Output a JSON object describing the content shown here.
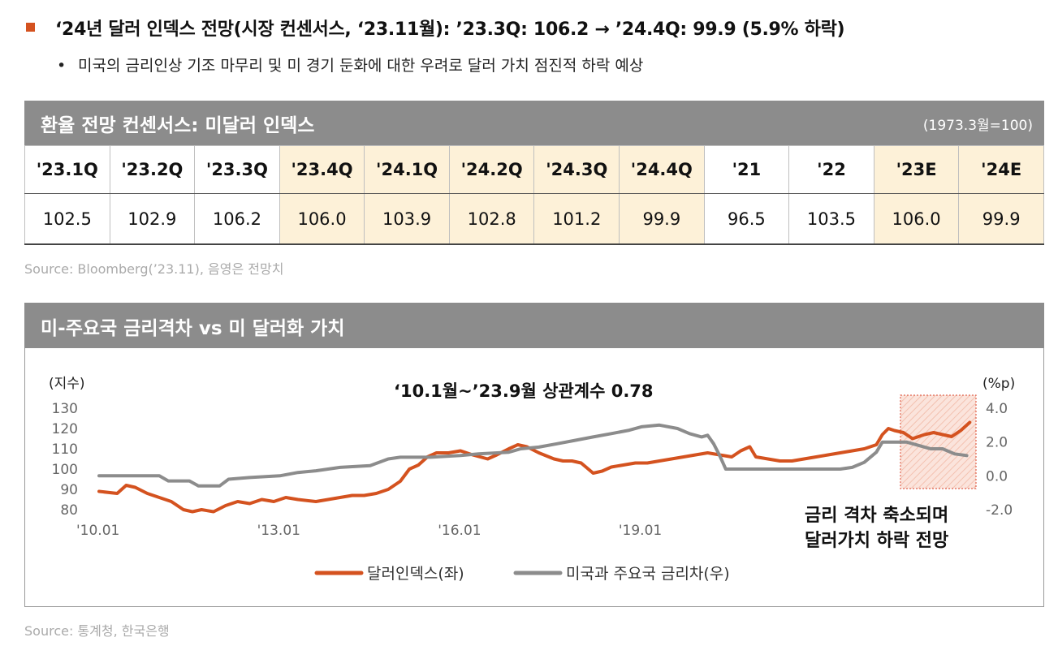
{
  "headline": {
    "text": "‘24년 달러 인덱스 전망(시장 컨센서스, ‘23.11월): ’23.3Q: 106.2 → ’24.4Q: 99.9 (5.9% 하락)",
    "bullet_color": "#d4521f"
  },
  "subpoint": "미국의 금리인상 기조 마무리 및 미 경기 둔화에 대한 우려로 달러 가치 점진적 하락 예상",
  "table": {
    "title": "환율 전망 컨센서스: 미달러 인덱스",
    "note": "(1973.3월=100)",
    "columns": [
      "'23.1Q",
      "'23.2Q",
      "'23.3Q",
      "'23.4Q",
      "'24.1Q",
      "'24.2Q",
      "'24.3Q",
      "'24.4Q",
      "'21",
      "'22",
      "'23E",
      "'24E"
    ],
    "values": [
      "102.5",
      "102.9",
      "106.2",
      "106.0",
      "103.9",
      "102.8",
      "101.2",
      "99.9",
      "96.5",
      "103.5",
      "106.0",
      "99.9"
    ],
    "forecast_flags": [
      false,
      false,
      false,
      true,
      true,
      true,
      true,
      true,
      false,
      false,
      true,
      true
    ],
    "forecast_color": "#fdf1d8",
    "source": "Source: Bloomberg(’23.11), 음영은 전망치"
  },
  "chart_section": {
    "title": "미-주요국 금리격차 vs 미 달러화 가치",
    "source": "Source: 통계청, 한국은행"
  },
  "chart_data": {
    "type": "line",
    "title": "‘10.1월~’23.9월 상관계수 0.78",
    "ylabel_left": "(지수)",
    "ylabel_right": "(%p)",
    "ylim_left": [
      80,
      130
    ],
    "yticks_left": [
      130,
      120,
      110,
      100,
      90,
      80
    ],
    "ylim_right": [
      -2.0,
      4.0
    ],
    "yticks_right": [
      "4.0",
      "2.0",
      "0.0",
      "-2.0"
    ],
    "x_ticks": [
      "'10.01",
      "'13.01",
      "'16.01",
      "'19.01"
    ],
    "x_range": [
      2010.0,
      2024.5
    ],
    "grid": false,
    "legend_position": "bottom",
    "annotation": [
      "금리 격차 축소되며",
      "달러가치 하락 전망"
    ],
    "forecast_shade_start": 2023.3,
    "series": [
      {
        "name": "달러인덱스(좌)",
        "color": "#d4521f",
        "axis": "left",
        "points": [
          [
            2010.0,
            89
          ],
          [
            2010.3,
            88
          ],
          [
            2010.45,
            92
          ],
          [
            2010.6,
            91
          ],
          [
            2010.8,
            88
          ],
          [
            2011.0,
            86
          ],
          [
            2011.2,
            84
          ],
          [
            2011.4,
            80
          ],
          [
            2011.55,
            79
          ],
          [
            2011.7,
            80
          ],
          [
            2011.9,
            79
          ],
          [
            2012.1,
            82
          ],
          [
            2012.3,
            84
          ],
          [
            2012.5,
            83
          ],
          [
            2012.7,
            85
          ],
          [
            2012.9,
            84
          ],
          [
            2013.1,
            86
          ],
          [
            2013.3,
            85
          ],
          [
            2013.6,
            84
          ],
          [
            2013.8,
            85
          ],
          [
            2014.0,
            86
          ],
          [
            2014.2,
            87
          ],
          [
            2014.4,
            87
          ],
          [
            2014.6,
            88
          ],
          [
            2014.8,
            90
          ],
          [
            2015.0,
            94
          ],
          [
            2015.15,
            100
          ],
          [
            2015.3,
            102
          ],
          [
            2015.45,
            106
          ],
          [
            2015.6,
            108
          ],
          [
            2015.8,
            108
          ],
          [
            2016.0,
            109
          ],
          [
            2016.2,
            107
          ],
          [
            2016.45,
            105
          ],
          [
            2016.6,
            107
          ],
          [
            2016.8,
            110
          ],
          [
            2016.95,
            112
          ],
          [
            2017.1,
            111
          ],
          [
            2017.3,
            108
          ],
          [
            2017.55,
            105
          ],
          [
            2017.7,
            104
          ],
          [
            2017.85,
            104
          ],
          [
            2018.0,
            103
          ],
          [
            2018.2,
            98
          ],
          [
            2018.35,
            99
          ],
          [
            2018.5,
            101
          ],
          [
            2018.7,
            102
          ],
          [
            2018.9,
            103
          ],
          [
            2019.1,
            103
          ],
          [
            2019.3,
            104
          ],
          [
            2019.5,
            105
          ],
          [
            2019.7,
            106
          ],
          [
            2019.9,
            107
          ],
          [
            2020.1,
            108
          ],
          [
            2020.3,
            107
          ],
          [
            2020.5,
            106
          ],
          [
            2020.65,
            109
          ],
          [
            2020.8,
            111
          ],
          [
            2020.9,
            106
          ],
          [
            2021.1,
            105
          ],
          [
            2021.3,
            104
          ],
          [
            2021.5,
            104
          ],
          [
            2021.7,
            105
          ],
          [
            2021.9,
            106
          ],
          [
            2022.1,
            107
          ],
          [
            2022.3,
            108
          ],
          [
            2022.5,
            109
          ],
          [
            2022.7,
            110
          ],
          [
            2022.9,
            112
          ],
          [
            2023.0,
            117
          ],
          [
            2023.1,
            120
          ],
          [
            2023.2,
            119
          ],
          [
            2023.35,
            118
          ],
          [
            2023.5,
            115
          ],
          [
            2023.7,
            117
          ],
          [
            2023.85,
            118
          ],
          [
            2024.0,
            117
          ],
          [
            2024.15,
            116
          ],
          [
            2024.3,
            119
          ],
          [
            2024.45,
            123
          ]
        ]
      },
      {
        "name": "미국과 주요국 금리차(우)",
        "color": "#8c8c8c",
        "axis": "right",
        "points": [
          [
            2010.0,
            0.0
          ],
          [
            2011.0,
            0.0
          ],
          [
            2011.15,
            -0.3
          ],
          [
            2011.5,
            -0.3
          ],
          [
            2011.65,
            -0.6
          ],
          [
            2012.0,
            -0.6
          ],
          [
            2012.15,
            -0.2
          ],
          [
            2012.5,
            -0.1
          ],
          [
            2013.0,
            0.0
          ],
          [
            2013.3,
            0.2
          ],
          [
            2013.6,
            0.3
          ],
          [
            2014.0,
            0.5
          ],
          [
            2014.5,
            0.6
          ],
          [
            2014.8,
            1.0
          ],
          [
            2015.0,
            1.1
          ],
          [
            2015.5,
            1.1
          ],
          [
            2016.0,
            1.2
          ],
          [
            2016.3,
            1.3
          ],
          [
            2016.8,
            1.4
          ],
          [
            2017.0,
            1.6
          ],
          [
            2017.3,
            1.7
          ],
          [
            2017.6,
            1.9
          ],
          [
            2017.9,
            2.1
          ],
          [
            2018.2,
            2.3
          ],
          [
            2018.5,
            2.5
          ],
          [
            2018.8,
            2.7
          ],
          [
            2019.0,
            2.9
          ],
          [
            2019.3,
            3.0
          ],
          [
            2019.6,
            2.8
          ],
          [
            2019.8,
            2.5
          ],
          [
            2020.0,
            2.3
          ],
          [
            2020.1,
            2.4
          ],
          [
            2020.2,
            1.9
          ],
          [
            2020.3,
            1.2
          ],
          [
            2020.4,
            0.4
          ],
          [
            2021.0,
            0.4
          ],
          [
            2022.0,
            0.4
          ],
          [
            2022.3,
            0.4
          ],
          [
            2022.5,
            0.5
          ],
          [
            2022.7,
            0.8
          ],
          [
            2022.9,
            1.4
          ],
          [
            2023.0,
            2.0
          ],
          [
            2023.4,
            2.0
          ],
          [
            2023.6,
            1.8
          ],
          [
            2023.8,
            1.6
          ],
          [
            2024.0,
            1.6
          ],
          [
            2024.2,
            1.3
          ],
          [
            2024.4,
            1.2
          ]
        ]
      }
    ]
  }
}
